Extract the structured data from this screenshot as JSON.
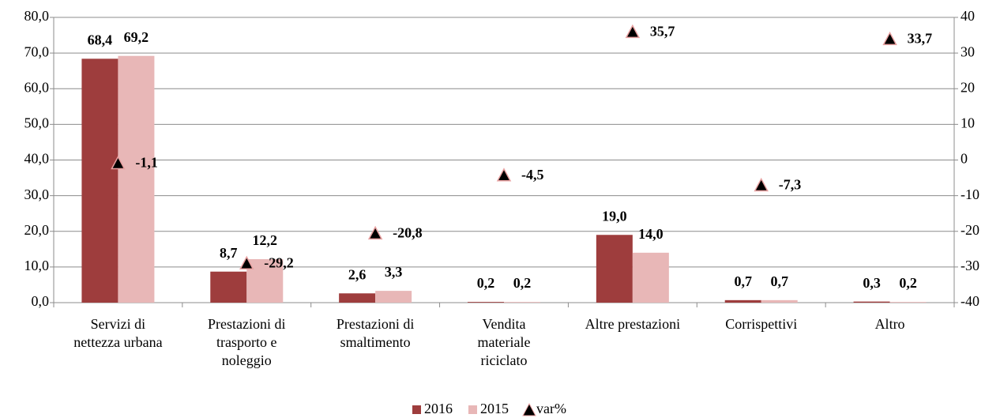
{
  "chart_data": {
    "type": "bar",
    "categories": [
      "Servizi di\nnettezza urbana",
      "Prestazioni di\ntrasporto e\nnoleggio",
      "Prestazioni di\nsmaltimento",
      "Vendita\nmateriale\nriciclato",
      "Altre prestazioni",
      "Corrispettivi",
      "Altro"
    ],
    "series": [
      {
        "name": "2016",
        "color": "#9e3d3d",
        "values": [
          68.4,
          8.7,
          2.6,
          0.2,
          19.0,
          0.7,
          0.3
        ],
        "value_labels": [
          "68,4",
          "8,7",
          "2,6",
          "0,2",
          "19,0",
          "0,7",
          "0,3"
        ]
      },
      {
        "name": "2015",
        "color": "#e8b7b7",
        "values": [
          69.2,
          12.2,
          3.3,
          0.2,
          14.0,
          0.7,
          0.2
        ],
        "value_labels": [
          "69,2",
          "12,2",
          "3,3",
          "0,2",
          "14,0",
          "0,7",
          "0,2"
        ]
      },
      {
        "name": "var%",
        "type": "scatter",
        "axis": "y2",
        "color": "#000000",
        "values": [
          -1.1,
          -29.2,
          -20.8,
          -4.5,
          35.7,
          -7.3,
          33.7
        ],
        "value_labels": [
          "-1,1",
          "-29,2",
          "-20,8",
          "-4,5",
          "35,7",
          "-7,3",
          "33,7"
        ]
      }
    ],
    "ylim": [
      0,
      80
    ],
    "yticks": [
      {
        "value": 0,
        "label": "0,0"
      },
      {
        "value": 10,
        "label": "10,0"
      },
      {
        "value": 20,
        "label": "20,0"
      },
      {
        "value": 30,
        "label": "30,0"
      },
      {
        "value": 40,
        "label": "40,0"
      },
      {
        "value": 50,
        "label": "50,0"
      },
      {
        "value": 60,
        "label": "60,0"
      },
      {
        "value": 70,
        "label": "70,0"
      },
      {
        "value": 80,
        "label": "80,0"
      }
    ],
    "y2lim": [
      -40,
      40
    ],
    "y2ticks": [
      -40,
      -30,
      -20,
      -10,
      0,
      10,
      20,
      30,
      40
    ],
    "grid": true,
    "legend": "bottom"
  }
}
